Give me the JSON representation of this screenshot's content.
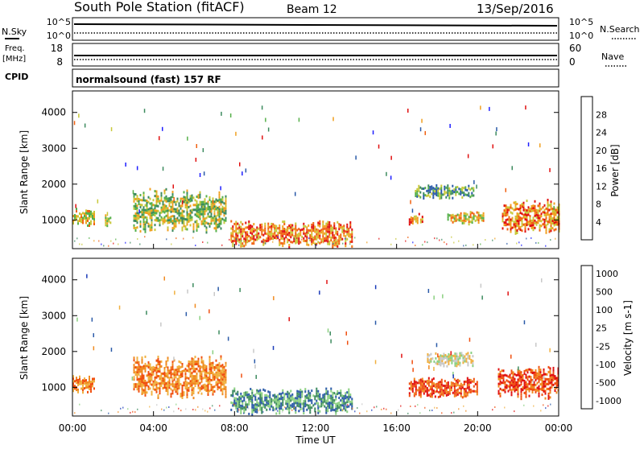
{
  "header": {
    "station": "South Pole Station (fitACF)",
    "beam": "Beam 12",
    "date": "13/Sep/2016"
  },
  "sky_panel": {
    "left_label": "N.Sky",
    "right_label": "N.Search",
    "left_ticks": [
      "10^5",
      "10^0"
    ],
    "right_ticks": [
      "10^5",
      "10^0"
    ]
  },
  "freq_panel": {
    "left_label_1": "Freq.",
    "left_label_2": "[MHz]",
    "right_label": "Nave",
    "left_ticks": [
      "18",
      "8"
    ],
    "right_ticks": [
      "60",
      "0"
    ]
  },
  "cpid": {
    "label": "CPID",
    "text": "normalsound (fast) 157 RF"
  },
  "colors": {
    "power_scale": [
      "#1f1fff",
      "#2a5aa8",
      "#3c8a5e",
      "#56b04a",
      "#c8c83a",
      "#f0a020",
      "#f06010",
      "#e01010"
    ],
    "velocity_scale": [
      "#e01010",
      "#f05010",
      "#f08a20",
      "#f0b040",
      "#c8c8c8",
      "#8ad080",
      "#3c8a5e",
      "#2a5aa8",
      "#1a3ab8"
    ]
  },
  "chart_data": [
    {
      "type": "heatmap",
      "name": "power",
      "ylabel": "Slant Range [km]",
      "yticks": [
        "1000",
        "2000",
        "3000",
        "4000"
      ],
      "ylim": [
        200,
        4600
      ],
      "xlim": [
        0,
        24
      ],
      "xticks": [
        "00:00",
        "04:00",
        "08:00",
        "12:00",
        "16:00",
        "20:00",
        "00:00"
      ],
      "colorbar_label": "Power [dB]",
      "colorbar_ticks": [
        "4",
        "8",
        "12",
        "16",
        "20",
        "24",
        "28"
      ],
      "colorbar_range": [
        0,
        32
      ],
      "regions": [
        {
          "t0": 0.0,
          "t1": 1.1,
          "r0": 850,
          "r1": 1350,
          "level": 18
        },
        {
          "t0": 1.6,
          "t1": 1.9,
          "r0": 800,
          "r1": 1250,
          "level": 16
        },
        {
          "t0": 3.0,
          "t1": 7.6,
          "r0": 650,
          "r1": 1900,
          "level": 16
        },
        {
          "t0": 7.8,
          "t1": 13.8,
          "r0": 250,
          "r1": 1000,
          "level": 22
        },
        {
          "t0": 16.6,
          "t1": 17.3,
          "r0": 850,
          "r1": 1200,
          "level": 22
        },
        {
          "t0": 16.9,
          "t1": 19.8,
          "r0": 1600,
          "r1": 2000,
          "level": 10
        },
        {
          "t0": 18.5,
          "t1": 20.3,
          "r0": 900,
          "r1": 1250,
          "level": 20
        },
        {
          "t0": 21.2,
          "t1": 24.0,
          "r0": 600,
          "r1": 1600,
          "level": 22
        }
      ]
    },
    {
      "type": "heatmap",
      "name": "velocity",
      "ylabel": "Slant Range [km]",
      "yticks": [
        "1000",
        "2000",
        "3000",
        "4000"
      ],
      "ylim": [
        200,
        4600
      ],
      "xlim": [
        0,
        24
      ],
      "xticks": [
        "00:00",
        "04:00",
        "08:00",
        "12:00",
        "16:00",
        "20:00",
        "00:00"
      ],
      "xlabel": "Time UT",
      "colorbar_label": "Velocity [m s-1]",
      "colorbar_ticks": [
        "1000",
        "500",
        "100",
        "25",
        "-25",
        "-100",
        "-500",
        "-1000"
      ],
      "regions": [
        {
          "t0": 0.0,
          "t1": 1.1,
          "r0": 800,
          "r1": 1350,
          "class": 2
        },
        {
          "t0": 3.0,
          "t1": 7.6,
          "r0": 700,
          "r1": 1900,
          "class": 2
        },
        {
          "t0": 7.8,
          "t1": 13.8,
          "r0": 250,
          "r1": 1000,
          "class": 6
        },
        {
          "t0": 16.6,
          "t1": 20.0,
          "r0": 700,
          "r1": 1300,
          "class": 1
        },
        {
          "t0": 17.5,
          "t1": 19.8,
          "r0": 1600,
          "r1": 2000,
          "class": 4
        },
        {
          "t0": 21.0,
          "t1": 24.0,
          "r0": 700,
          "r1": 1600,
          "class": 1
        }
      ]
    }
  ]
}
